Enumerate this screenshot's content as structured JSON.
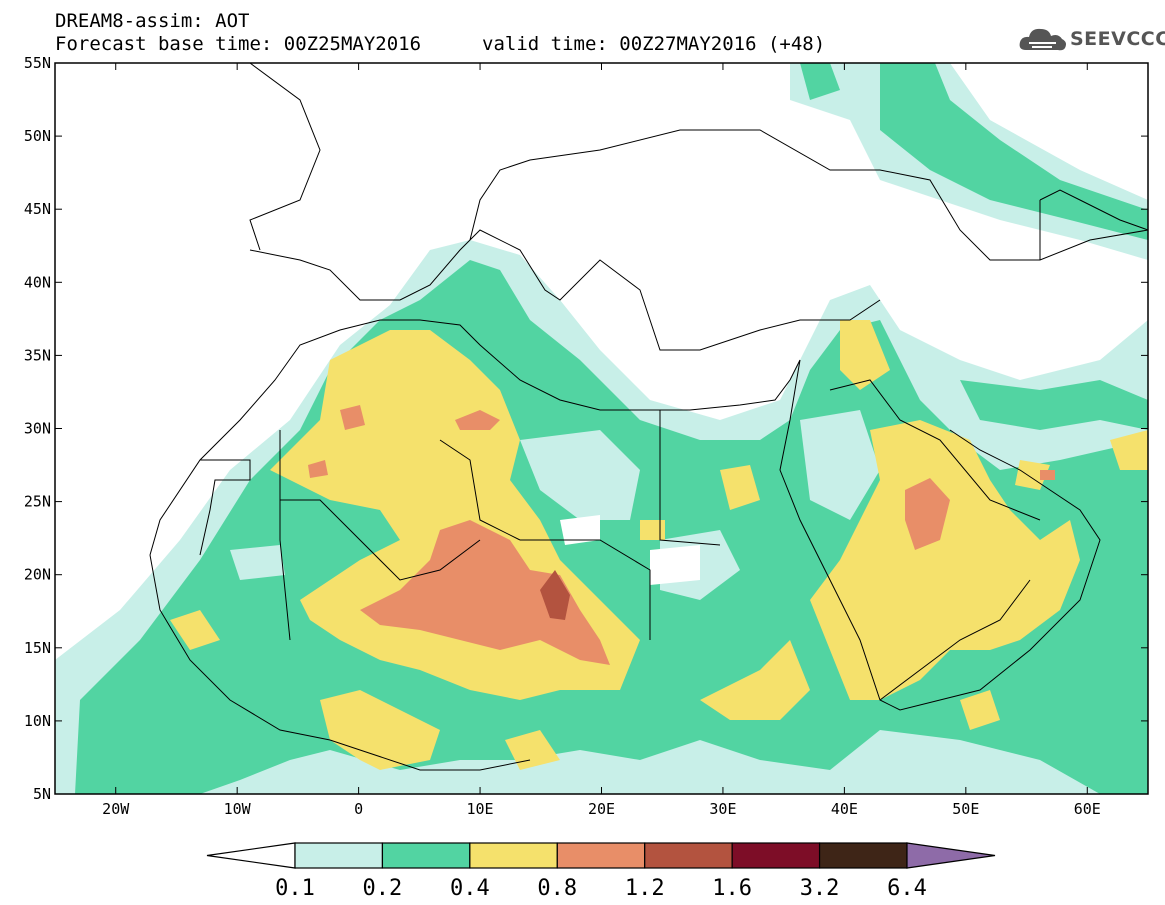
{
  "header": {
    "title": "DREAM8-assim: AOT",
    "base_time": "Forecast base time: 00Z25MAY2016",
    "valid_time": "valid time: 00Z27MAY2016 (+48)"
  },
  "logo": {
    "text": "SEEVCCC",
    "icon": "cloud-icon"
  },
  "map": {
    "lon_range": [
      -25,
      65
    ],
    "lat_range": [
      5,
      55
    ],
    "lon_ticks": [
      {
        "v": -20,
        "label": "20W"
      },
      {
        "v": -10,
        "label": "10W"
      },
      {
        "v": 0,
        "label": "0"
      },
      {
        "v": 10,
        "label": "10E"
      },
      {
        "v": 20,
        "label": "20E"
      },
      {
        "v": 30,
        "label": "30E"
      },
      {
        "v": 40,
        "label": "40E"
      },
      {
        "v": 50,
        "label": "50E"
      },
      {
        "v": 60,
        "label": "60E"
      }
    ],
    "lat_ticks": [
      {
        "v": 5,
        "label": "5N"
      },
      {
        "v": 10,
        "label": "10N"
      },
      {
        "v": 15,
        "label": "15N"
      },
      {
        "v": 20,
        "label": "20N"
      },
      {
        "v": 25,
        "label": "25N"
      },
      {
        "v": 30,
        "label": "30N"
      },
      {
        "v": 35,
        "label": "35N"
      },
      {
        "v": 40,
        "label": "40N"
      },
      {
        "v": 45,
        "label": "45N"
      },
      {
        "v": 50,
        "label": "50N"
      },
      {
        "v": 55,
        "label": "55N"
      }
    ]
  },
  "colorbar": {
    "labels": [
      "0.1",
      "0.2",
      "0.4",
      "0.8",
      "1.2",
      "1.6",
      "3.2",
      "6.4"
    ],
    "colors": [
      "#ffffff",
      "#c8efe8",
      "#52d4a2",
      "#f5e16c",
      "#e88e68",
      "#b3533f",
      "#7d0d27",
      "#3e2517",
      "#8e6ba8"
    ]
  }
}
